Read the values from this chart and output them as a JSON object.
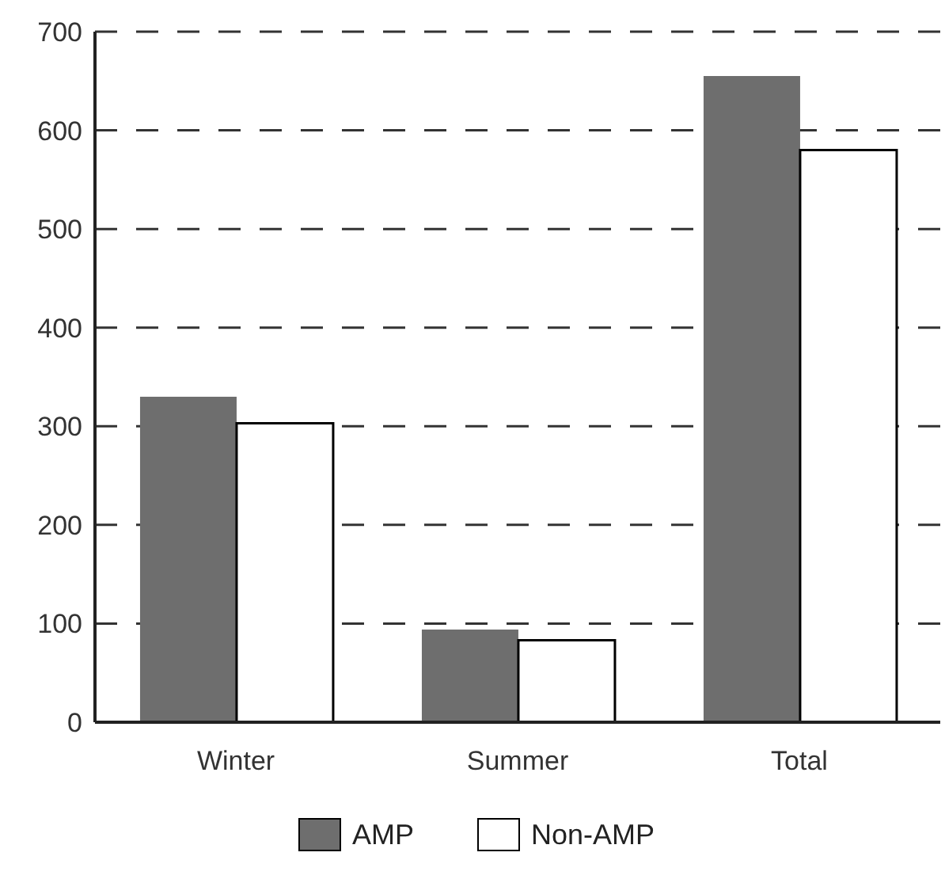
{
  "chart_data": {
    "type": "bar",
    "categories": [
      "Winter",
      "Summer",
      "Total"
    ],
    "series": [
      {
        "name": "AMP",
        "color": "#6e6e6e",
        "values": [
          330,
          94,
          655
        ]
      },
      {
        "name": "Non-AMP",
        "color": "#ffffff",
        "values": [
          303,
          83,
          580
        ]
      }
    ],
    "ylim": [
      0,
      700
    ],
    "yticks": [
      0,
      100,
      200,
      300,
      400,
      500,
      600,
      700
    ],
    "grid": "y",
    "legend": "bottom"
  }
}
